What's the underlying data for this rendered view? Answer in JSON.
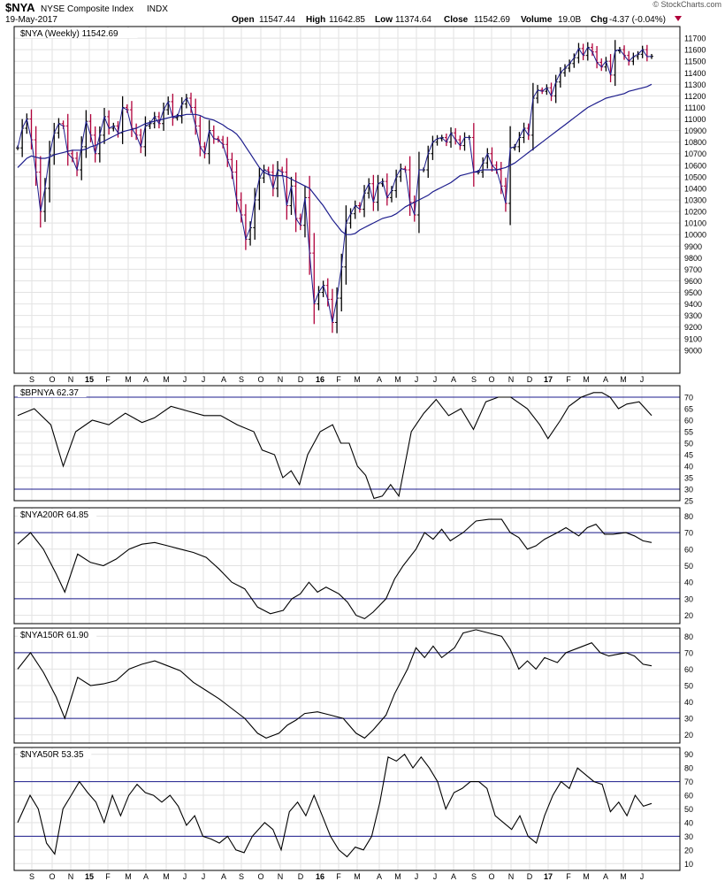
{
  "header": {
    "symbol": "$NYA",
    "name": "NYSE Composite Index",
    "exchange": "INDX",
    "date": "19-May-2017",
    "open_label": "Open",
    "open": "11547.44",
    "high_label": "High",
    "high": "11642.85",
    "low_label": "Low",
    "low": "11374.64",
    "close_label": "Close",
    "close": "11542.69",
    "volume_label": "Volume",
    "volume": "19.0B",
    "chg_label": "Chg",
    "chg": "-4.37 (-0.04%)",
    "watermark": "© StockCharts.com"
  },
  "colors": {
    "up": "#000000",
    "down": "#b0003a",
    "ma": "#1c1c8c",
    "line": "#000000",
    "ref": "#1c1c8c",
    "grid": "#e2e2e2"
  },
  "x_axis": {
    "labels": [
      "S",
      "O",
      "N",
      "15",
      "F",
      "M",
      "A",
      "M",
      "J",
      "J",
      "A",
      "S",
      "O",
      "N",
      "D",
      "16",
      "F",
      "M",
      "A",
      "M",
      "J",
      "J",
      "A",
      "S",
      "O",
      "N",
      "D",
      "17",
      "F",
      "M",
      "A",
      "M",
      "J"
    ],
    "bold": [
      "15",
      "16",
      "17"
    ]
  },
  "chart_data": [
    {
      "type": "ohlc",
      "label": "$NYA (Weekly) 11542.69",
      "ylim": [
        8800,
        11800
      ],
      "yticks": [
        9000,
        9100,
        9200,
        9300,
        9400,
        9500,
        9600,
        9700,
        9800,
        9900,
        10000,
        10100,
        10200,
        10300,
        10400,
        10500,
        10600,
        10700,
        10800,
        10900,
        11000,
        11100,
        11200,
        11300,
        11400,
        11500,
        11600,
        11700
      ],
      "weeks": 140,
      "close": [
        10750,
        10920,
        11000,
        10820,
        10540,
        10200,
        10400,
        10690,
        10880,
        10960,
        10940,
        10700,
        10660,
        10560,
        10760,
        10980,
        10860,
        10700,
        10860,
        11020,
        10920,
        10940,
        10880,
        11100,
        11080,
        10920,
        10860,
        10760,
        10940,
        10960,
        11020,
        10960,
        11080,
        11150,
        11010,
        11020,
        11130,
        11180,
        11100,
        10940,
        10760,
        10700,
        10900,
        10830,
        10820,
        10780,
        10650,
        10540,
        10300,
        10170,
        9960,
        10060,
        10300,
        10490,
        10560,
        10540,
        10400,
        10560,
        10540,
        10250,
        10420,
        10140,
        10080,
        10320,
        9840,
        9400,
        9500,
        9560,
        9440,
        9240,
        9450,
        9720,
        10100,
        10180,
        10250,
        10220,
        10360,
        10440,
        10280,
        10440,
        10460,
        10320,
        10380,
        10500,
        10570,
        10560,
        10280,
        10170,
        10560,
        10560,
        10700,
        10800,
        10830,
        10840,
        10800,
        10880,
        10820,
        10770,
        10840,
        10840,
        10540,
        10540,
        10620,
        10700,
        10600,
        10560,
        10420,
        10270,
        10750,
        10760,
        10840,
        10920,
        10860,
        11180,
        11250,
        11240,
        11270,
        11200,
        11320,
        11400,
        11440,
        11480,
        11530,
        11610,
        11550,
        11620,
        11580,
        11490,
        11450,
        11500,
        11380,
        11590,
        11600,
        11550,
        11500,
        11540,
        11560,
        11600,
        11540,
        11542
      ],
      "ma": [
        10580,
        10620,
        10660,
        10680,
        10670,
        10660,
        10660,
        10670,
        10690,
        10700,
        10710,
        10720,
        10730,
        10730,
        10730,
        10740,
        10760,
        10770,
        10790,
        10810,
        10830,
        10850,
        10870,
        10890,
        10900,
        10910,
        10920,
        10940,
        10960,
        10970,
        10980,
        10990,
        11000,
        11010,
        11020,
        11030,
        11030,
        11040,
        11040,
        11040,
        11030,
        11010,
        11000,
        10990,
        10970,
        10950,
        10920,
        10900,
        10870,
        10820,
        10760,
        10700,
        10640,
        10580,
        10540,
        10520,
        10510,
        10510,
        10510,
        10500,
        10480,
        10460,
        10440,
        10420,
        10400,
        10350,
        10300,
        10250,
        10190,
        10130,
        10080,
        10030,
        10000,
        10000,
        10010,
        10040,
        10060,
        10080,
        10100,
        10120,
        10140,
        10150,
        10160,
        10180,
        10210,
        10240,
        10260,
        10280,
        10300,
        10320,
        10340,
        10370,
        10390,
        10410,
        10430,
        10450,
        10480,
        10510,
        10520,
        10530,
        10540,
        10550,
        10560,
        10560,
        10560,
        10560,
        10570,
        10580,
        10600,
        10620,
        10650,
        10680,
        10710,
        10740,
        10770,
        10800,
        10830,
        10860,
        10890,
        10920,
        10950,
        10980,
        11010,
        11040,
        11070,
        11100,
        11120,
        11140,
        11160,
        11180,
        11190,
        11200,
        11210,
        11220,
        11240,
        11250,
        11260,
        11270,
        11280,
        11300
      ]
    },
    {
      "type": "line",
      "label": "$BPNYA 62.37",
      "ylim": [
        25,
        75
      ],
      "yticks": [
        25,
        30,
        35,
        40,
        45,
        50,
        55,
        60,
        65,
        70
      ],
      "refs": [
        70,
        30
      ],
      "keys": [
        [
          0,
          62
        ],
        [
          4,
          65
        ],
        [
          8,
          58
        ],
        [
          11,
          40
        ],
        [
          14,
          55
        ],
        [
          18,
          60
        ],
        [
          22,
          58
        ],
        [
          26,
          63
        ],
        [
          30,
          59
        ],
        [
          33,
          61
        ],
        [
          37,
          66
        ],
        [
          41,
          64
        ],
        [
          45,
          62
        ],
        [
          49,
          62
        ],
        [
          53,
          58
        ],
        [
          57,
          55
        ],
        [
          59,
          47
        ],
        [
          62,
          45
        ],
        [
          64,
          35
        ],
        [
          66,
          38
        ],
        [
          68,
          32
        ],
        [
          70,
          45
        ],
        [
          73,
          55
        ],
        [
          76,
          58
        ],
        [
          78,
          50
        ],
        [
          80,
          50
        ],
        [
          82,
          40
        ],
        [
          84,
          36
        ],
        [
          86,
          26
        ],
        [
          88,
          27
        ],
        [
          90,
          32
        ],
        [
          92,
          27
        ],
        [
          95,
          55
        ],
        [
          98,
          63
        ],
        [
          101,
          69
        ],
        [
          104,
          62
        ],
        [
          107,
          65
        ],
        [
          110,
          56
        ],
        [
          113,
          68
        ],
        [
          116,
          70
        ],
        [
          119,
          70
        ],
        [
          123,
          65
        ],
        [
          126,
          58
        ],
        [
          128,
          52
        ],
        [
          131,
          60
        ],
        [
          133,
          66
        ],
        [
          136,
          70
        ],
        [
          139,
          72
        ],
        [
          141,
          72
        ],
        [
          143,
          70
        ],
        [
          145,
          65
        ],
        [
          147,
          67
        ],
        [
          150,
          68
        ],
        [
          153,
          62
        ]
      ]
    },
    {
      "type": "line",
      "label": "$NYA200R 64.85",
      "ylim": [
        15,
        85
      ],
      "yticks": [
        20,
        30,
        40,
        50,
        60,
        70,
        80
      ],
      "refs": [
        70,
        30
      ],
      "keys": [
        [
          0,
          63
        ],
        [
          3,
          70
        ],
        [
          6,
          60
        ],
        [
          9,
          45
        ],
        [
          11,
          34
        ],
        [
          14,
          57
        ],
        [
          17,
          52
        ],
        [
          20,
          50
        ],
        [
          23,
          54
        ],
        [
          26,
          60
        ],
        [
          29,
          63
        ],
        [
          32,
          64
        ],
        [
          35,
          62
        ],
        [
          38,
          60
        ],
        [
          41,
          58
        ],
        [
          44,
          55
        ],
        [
          47,
          48
        ],
        [
          50,
          40
        ],
        [
          53,
          36
        ],
        [
          56,
          25
        ],
        [
          59,
          21
        ],
        [
          62,
          23
        ],
        [
          64,
          30
        ],
        [
          66,
          33
        ],
        [
          68,
          40
        ],
        [
          70,
          34
        ],
        [
          72,
          37
        ],
        [
          75,
          33
        ],
        [
          77,
          28
        ],
        [
          79,
          20
        ],
        [
          81,
          18
        ],
        [
          83,
          22
        ],
        [
          86,
          30
        ],
        [
          88,
          42
        ],
        [
          90,
          50
        ],
        [
          93,
          60
        ],
        [
          95,
          70
        ],
        [
          97,
          66
        ],
        [
          99,
          72
        ],
        [
          101,
          65
        ],
        [
          104,
          70
        ],
        [
          107,
          77
        ],
        [
          110,
          78
        ],
        [
          113,
          78
        ],
        [
          115,
          70
        ],
        [
          117,
          67
        ],
        [
          119,
          60
        ],
        [
          121,
          62
        ],
        [
          123,
          66
        ],
        [
          126,
          70
        ],
        [
          128,
          73
        ],
        [
          131,
          68
        ],
        [
          133,
          73
        ],
        [
          135,
          75
        ],
        [
          137,
          69
        ],
        [
          139,
          69
        ],
        [
          142,
          70
        ],
        [
          144,
          68
        ],
        [
          146,
          65
        ],
        [
          148,
          64
        ]
      ]
    },
    {
      "type": "line",
      "label": "$NYA150R 61.90",
      "ylim": [
        15,
        85
      ],
      "yticks": [
        20,
        30,
        40,
        50,
        60,
        70,
        80
      ],
      "refs": [
        70,
        30
      ],
      "keys": [
        [
          0,
          60
        ],
        [
          3,
          70
        ],
        [
          6,
          58
        ],
        [
          9,
          43
        ],
        [
          11,
          30
        ],
        [
          14,
          55
        ],
        [
          17,
          50
        ],
        [
          20,
          51
        ],
        [
          23,
          53
        ],
        [
          26,
          60
        ],
        [
          29,
          63
        ],
        [
          32,
          65
        ],
        [
          35,
          62
        ],
        [
          38,
          59
        ],
        [
          41,
          52
        ],
        [
          44,
          47
        ],
        [
          47,
          42
        ],
        [
          50,
          36
        ],
        [
          53,
          30
        ],
        [
          56,
          21
        ],
        [
          58,
          18
        ],
        [
          61,
          21
        ],
        [
          63,
          26
        ],
        [
          65,
          29
        ],
        [
          67,
          33
        ],
        [
          70,
          34
        ],
        [
          73,
          32
        ],
        [
          76,
          30
        ],
        [
          79,
          21
        ],
        [
          81,
          18
        ],
        [
          83,
          23
        ],
        [
          86,
          32
        ],
        [
          88,
          45
        ],
        [
          91,
          60
        ],
        [
          93,
          73
        ],
        [
          95,
          67
        ],
        [
          97,
          74
        ],
        [
          99,
          67
        ],
        [
          102,
          73
        ],
        [
          104,
          82
        ],
        [
          107,
          84
        ],
        [
          110,
          82
        ],
        [
          113,
          80
        ],
        [
          115,
          72
        ],
        [
          117,
          60
        ],
        [
          119,
          65
        ],
        [
          121,
          60
        ],
        [
          123,
          67
        ],
        [
          126,
          64
        ],
        [
          128,
          70
        ],
        [
          131,
          73
        ],
        [
          134,
          76
        ],
        [
          136,
          70
        ],
        [
          138,
          68
        ],
        [
          140,
          69
        ],
        [
          142,
          70
        ],
        [
          144,
          68
        ],
        [
          146,
          63
        ],
        [
          148,
          62
        ]
      ]
    },
    {
      "type": "line",
      "label": "$NYA50R 53.35",
      "ylim": [
        5,
        95
      ],
      "yticks": [
        10,
        20,
        30,
        40,
        50,
        60,
        70,
        80,
        90
      ],
      "refs": [
        70,
        30
      ],
      "keys": [
        [
          0,
          40
        ],
        [
          3,
          60
        ],
        [
          5,
          50
        ],
        [
          7,
          25
        ],
        [
          9,
          17
        ],
        [
          11,
          50
        ],
        [
          13,
          60
        ],
        [
          15,
          70
        ],
        [
          17,
          62
        ],
        [
          19,
          55
        ],
        [
          21,
          40
        ],
        [
          23,
          60
        ],
        [
          25,
          45
        ],
        [
          27,
          60
        ],
        [
          29,
          68
        ],
        [
          31,
          62
        ],
        [
          33,
          60
        ],
        [
          35,
          55
        ],
        [
          37,
          60
        ],
        [
          39,
          52
        ],
        [
          41,
          38
        ],
        [
          43,
          45
        ],
        [
          45,
          30
        ],
        [
          47,
          28
        ],
        [
          49,
          25
        ],
        [
          51,
          30
        ],
        [
          53,
          20
        ],
        [
          55,
          18
        ],
        [
          57,
          30
        ],
        [
          60,
          40
        ],
        [
          62,
          35
        ],
        [
          64,
          20
        ],
        [
          66,
          48
        ],
        [
          68,
          55
        ],
        [
          70,
          45
        ],
        [
          72,
          60
        ],
        [
          74,
          45
        ],
        [
          76,
          30
        ],
        [
          78,
          20
        ],
        [
          80,
          15
        ],
        [
          82,
          22
        ],
        [
          84,
          20
        ],
        [
          86,
          30
        ],
        [
          88,
          55
        ],
        [
          90,
          88
        ],
        [
          92,
          85
        ],
        [
          94,
          90
        ],
        [
          96,
          80
        ],
        [
          98,
          88
        ],
        [
          100,
          80
        ],
        [
          102,
          70
        ],
        [
          104,
          50
        ],
        [
          106,
          62
        ],
        [
          108,
          65
        ],
        [
          110,
          70
        ],
        [
          112,
          70
        ],
        [
          114,
          65
        ],
        [
          116,
          45
        ],
        [
          118,
          40
        ],
        [
          120,
          35
        ],
        [
          122,
          45
        ],
        [
          124,
          30
        ],
        [
          126,
          25
        ],
        [
          128,
          45
        ],
        [
          130,
          60
        ],
        [
          132,
          70
        ],
        [
          134,
          65
        ],
        [
          136,
          80
        ],
        [
          138,
          75
        ],
        [
          140,
          70
        ],
        [
          142,
          68
        ],
        [
          144,
          48
        ],
        [
          146,
          55
        ],
        [
          148,
          45
        ],
        [
          150,
          60
        ],
        [
          152,
          52
        ],
        [
          154,
          54
        ]
      ]
    }
  ]
}
